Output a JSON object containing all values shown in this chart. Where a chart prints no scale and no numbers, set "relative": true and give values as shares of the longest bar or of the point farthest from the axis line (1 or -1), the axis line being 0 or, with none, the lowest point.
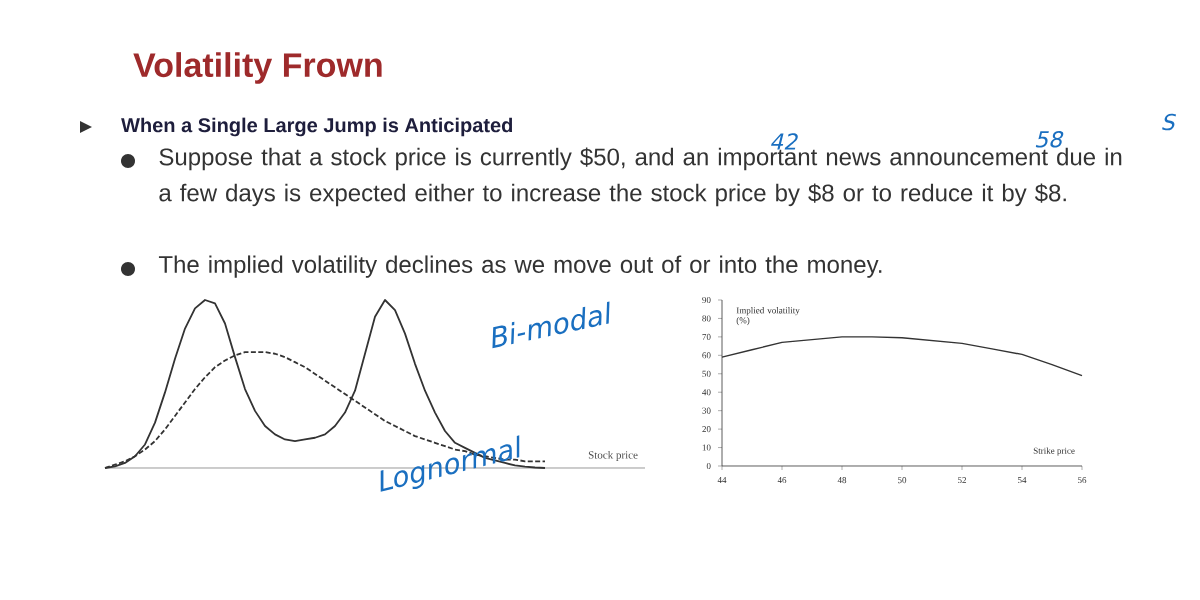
{
  "chart_data": [
    {
      "type": "line",
      "title": "Volatility Frown",
      "subtitle": "When a Single Large Jump is Anticipated",
      "xlabel": "Stock price",
      "relative": true,
      "annotations": [
        "Suppose that a stock price is currently $50, and an important news announcement due in a few days is expected either to increase the stock price by $8 or to reduce it by $8.",
        "The implied volatility declines as we move out of or into the money.",
        "Bi-modal",
        "Lognormal",
        "42",
        "58",
        "S"
      ],
      "categories": [
        null,
        null,
        null,
        null,
        null,
        null,
        null,
        null,
        null,
        null,
        null,
        null,
        null,
        null,
        null,
        null,
        null,
        null,
        null,
        null,
        null,
        null,
        null,
        null,
        null,
        null,
        null,
        null,
        null,
        null,
        null,
        null,
        null,
        null,
        null,
        null,
        null,
        null,
        null,
        null,
        null,
        null,
        null,
        null,
        null
      ],
      "series": [
        {
          "color": "#333333",
          "line_style": "solid",
          "values": [
            0,
            0.01,
            0.03,
            0.07,
            0.14,
            0.27,
            0.45,
            0.65,
            0.83,
            0.95,
            1,
            0.98,
            0.86,
            0.66,
            0.47,
            0.34,
            0.25,
            0.2,
            0.17,
            0.16,
            0.17,
            0.18,
            0.2,
            0.25,
            0.33,
            0.46,
            0.68,
            0.9,
            1,
            0.94,
            0.8,
            0.62,
            0.46,
            0.33,
            0.22,
            0.15,
            0.12,
            0.09,
            0.06,
            0.045,
            0.03,
            0.015,
            0.008,
            0.003,
            0
          ]
        },
        {
          "color": "#333333",
          "line_style": "dashed",
          "values": [
            0,
            0.02,
            0.04,
            0.07,
            0.11,
            0.16,
            0.23,
            0.31,
            0.39,
            0.47,
            0.54,
            0.6,
            0.64,
            0.67,
            0.69,
            0.69,
            0.69,
            0.68,
            0.66,
            0.63,
            0.6,
            0.56,
            0.52,
            0.48,
            0.44,
            0.4,
            0.36,
            0.32,
            0.28,
            0.25,
            0.22,
            0.19,
            0.17,
            0.15,
            0.13,
            0.11,
            0.1,
            0.08,
            0.07,
            0.06,
            0.05,
            0.05,
            0.04,
            0.04,
            0.04
          ]
        }
      ]
    },
    {
      "type": "line",
      "xlabel": "Strike price",
      "ylabel": "Implied volatility (%)",
      "color": "#333333",
      "x": [
        44,
        45,
        46,
        47,
        48,
        49,
        50,
        51,
        52,
        53,
        54,
        55,
        56
      ],
      "values": [
        59,
        63,
        67,
        68.5,
        70,
        70,
        69.5,
        68,
        66.5,
        63.5,
        60.5,
        55,
        49
      ],
      "xlim": [
        44,
        56
      ],
      "ylim": [
        0,
        90
      ],
      "xticks": [
        44,
        46,
        48,
        50,
        52,
        54,
        56
      ],
      "yticks": [
        0,
        10,
        20,
        30,
        40,
        50,
        60,
        70,
        80,
        90
      ]
    }
  ]
}
